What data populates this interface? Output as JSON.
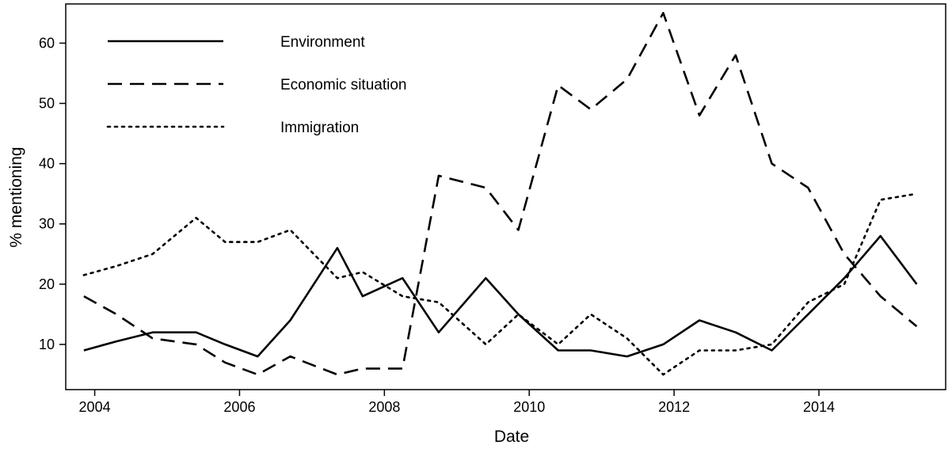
{
  "chart_data": {
    "type": "line",
    "xlabel": "Date",
    "ylabel": "% mentioning",
    "xlim": [
      2003.6,
      2015.75
    ],
    "ylim": [
      2.5,
      66.5
    ],
    "x_ticks": [
      2004,
      2006,
      2008,
      2010,
      2012,
      2014
    ],
    "y_ticks": [
      10,
      20,
      30,
      40,
      50,
      60
    ],
    "grid": false,
    "legend_position": "top-left",
    "series": [
      {
        "name": "Environment",
        "style": "solid",
        "x": [
          2003.85,
          2004.3,
          2004.8,
          2005.4,
          2005.8,
          2006.25,
          2006.7,
          2007.35,
          2007.7,
          2008.25,
          2008.75,
          2009.4,
          2009.85,
          2010.4,
          2010.85,
          2011.35,
          2011.85,
          2012.35,
          2012.85,
          2013.35,
          2013.85,
          2014.35,
          2014.85,
          2015.35
        ],
        "y": [
          9,
          10.5,
          12,
          12,
          10,
          8,
          14,
          26,
          18,
          21,
          12,
          21,
          15,
          9,
          9,
          8,
          10,
          14,
          12,
          9,
          15,
          21,
          28,
          20
        ]
      },
      {
        "name": "Economic situation",
        "style": "dashed",
        "x": [
          2003.85,
          2004.3,
          2004.8,
          2005.4,
          2005.8,
          2006.25,
          2006.7,
          2007.35,
          2007.7,
          2008.25,
          2008.75,
          2009.4,
          2009.85,
          2010.4,
          2010.85,
          2011.35,
          2011.85,
          2012.35,
          2012.85,
          2013.35,
          2013.85,
          2014.35,
          2014.85,
          2015.35
        ],
        "y": [
          18,
          15,
          11,
          10,
          7,
          5,
          8,
          5,
          6,
          6,
          38,
          36,
          29,
          53,
          49,
          54,
          65,
          48,
          58,
          40,
          36,
          25,
          18,
          13
        ]
      },
      {
        "name": "Immigration",
        "style": "dotted",
        "x": [
          2003.85,
          2004.3,
          2004.8,
          2005.4,
          2005.8,
          2006.25,
          2006.7,
          2007.35,
          2007.7,
          2008.25,
          2008.75,
          2009.4,
          2009.85,
          2010.4,
          2010.85,
          2011.35,
          2011.85,
          2012.35,
          2012.85,
          2013.35,
          2013.85,
          2014.35,
          2014.85,
          2015.35
        ],
        "y": [
          21.5,
          23,
          25,
          31,
          27,
          27,
          29,
          21,
          22,
          18,
          17,
          10,
          15,
          10,
          15,
          11,
          5,
          9,
          9,
          10,
          17,
          20,
          34,
          35
        ]
      }
    ]
  }
}
